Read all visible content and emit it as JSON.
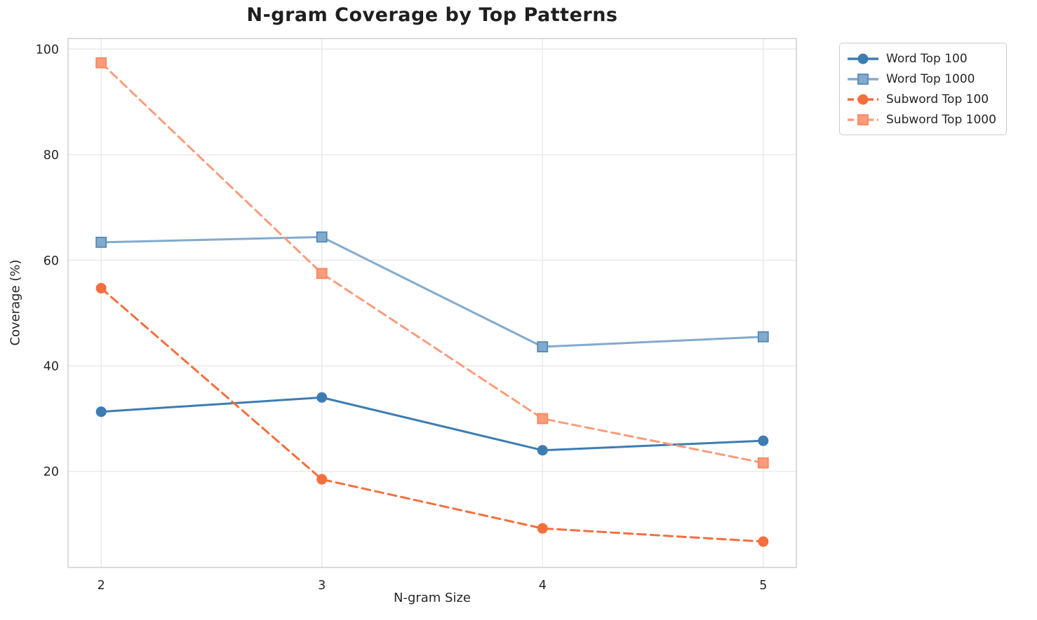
{
  "title": "N-gram Coverage by Top Patterns",
  "chart_data": {
    "type": "line",
    "title": "N-gram Coverage by Top Patterns",
    "xlabel": "N-gram Size",
    "ylabel": "Coverage (%)",
    "x": [
      2,
      3,
      4,
      5
    ],
    "xtick_labels": [
      "2",
      "3",
      "4",
      "5"
    ],
    "ytick_values": [
      20,
      40,
      60,
      80,
      100
    ],
    "xlim": [
      1.85,
      5.15
    ],
    "ylim": [
      1.8,
      102.0
    ],
    "grid": true,
    "legend_position": "outside-upper-right",
    "colors": {
      "grid": "#e7e7e7",
      "spine": "#cfcfcf",
      "tick_text": "#262626"
    },
    "series": [
      {
        "name": "Word Top 100",
        "slug": "word-top-100",
        "values": [
          31.3,
          34.0,
          24.0,
          25.8
        ],
        "color": "#3d7cb2",
        "edge": "#3d7cb2",
        "linestyle": "solid",
        "marker": "circle"
      },
      {
        "name": "Word Top 1000",
        "slug": "word-top-1000",
        "values": [
          63.4,
          64.4,
          43.6,
          45.5
        ],
        "color": "#82aacd",
        "edge": "#5387b7",
        "linestyle": "solid",
        "marker": "square"
      },
      {
        "name": "Subword Top 100",
        "slug": "subword-top-100",
        "values": [
          54.7,
          18.5,
          9.2,
          6.7
        ],
        "color": "#f56e3d",
        "edge": "#f56e3d",
        "linestyle": "dashed",
        "marker": "circle"
      },
      {
        "name": "Subword Top 1000",
        "slug": "subword-top-1000",
        "values": [
          97.4,
          57.5,
          30.0,
          21.6
        ],
        "color": "#f99c7c",
        "edge": "#f8875f",
        "linestyle": "dashed",
        "marker": "square"
      }
    ]
  }
}
